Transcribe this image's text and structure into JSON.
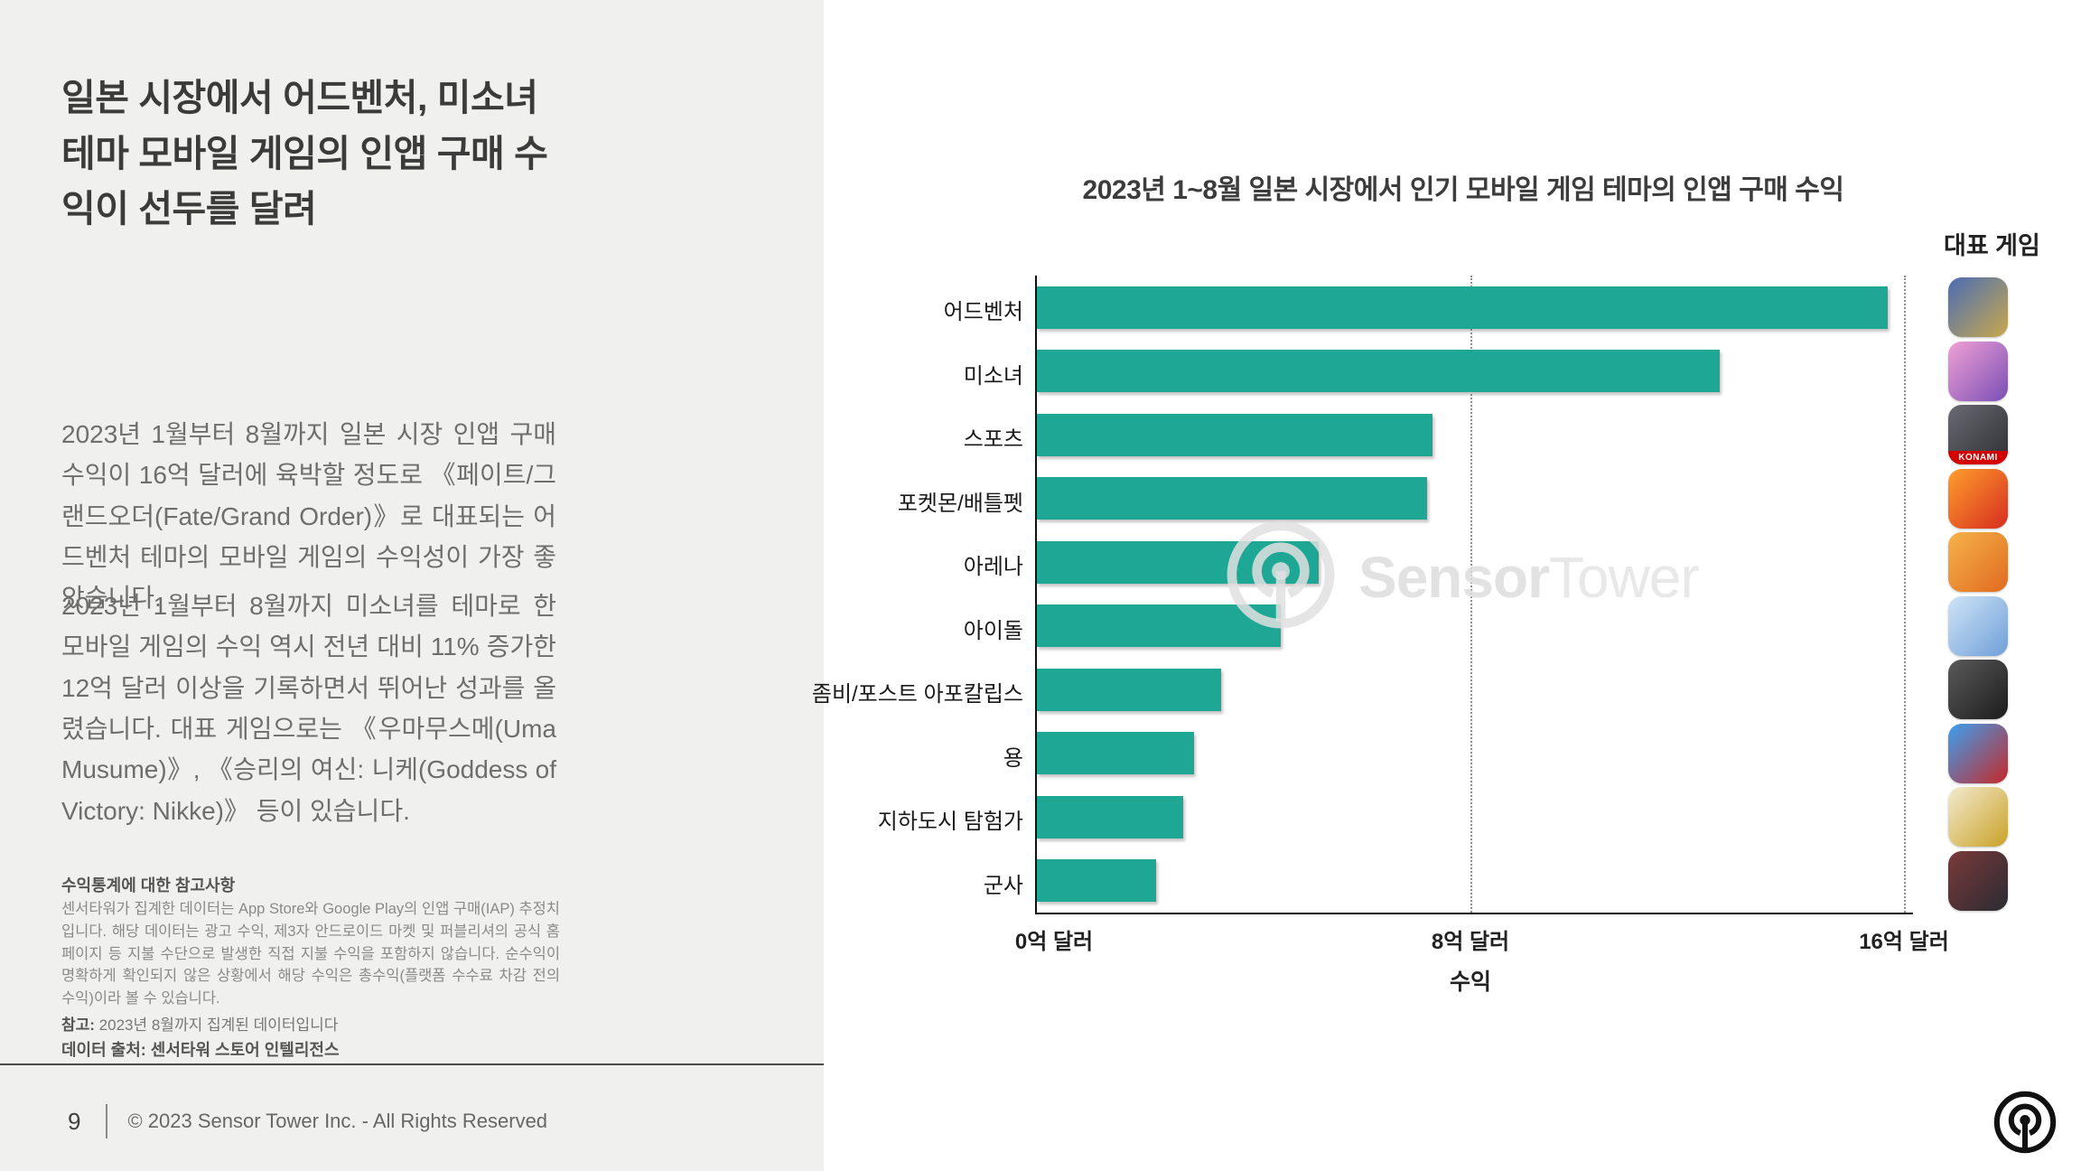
{
  "left_panel": {
    "title": "일본 시장에서 어드벤처, 미소녀 테마 모바일 게임의 인앱 구매 수익이 선두를 달려",
    "paragraph1": "2023년 1월부터 8월까지 일본 시장 인앱 구매 수익이 16억 달러에 육박할 정도로 《페이트/그랜드오더(Fate/Grand Order)》로 대표되는 어드벤처 테마의 모바일 게임의 수익성이 가장 좋았습니다.",
    "paragraph2": "2023년 1월부터 8월까지 미소녀를 테마로 한 모바일 게임의 수익 역시 전년 대비 11% 증가한 12억 달러 이상을 기록하면서 뛰어난 성과를 올렸습니다. 대표 게임으로는 《우마무스메(Uma Musume)》, 《승리의 여신: 니케(Goddess of Victory: Nikke)》 등이 있습니다.",
    "notes_heading": "수익통계에 대한 참고사항",
    "notes_body": "센서타워가 집계한 데이터는 App Store와 Google Play의 인앱 구매(IAP) 추정치입니다. 해당 데이터는 광고 수익, 제3자 안드로이드 마켓 및 퍼블리셔의 공식 홈페이지 등 지불 수단으로 발생한 직접 지불 수익을 포함하지 않습니다. 순수익이 명확하게 확인되지 않은 상황에서 해당 수익은 총수익(플랫폼 수수료 차감 전의 수익)이라 볼 수 있습니다.",
    "remark_label": "참고:",
    "remark_text": " 2023년 8월까지 집계된 데이터입니다",
    "source_line": "데이터 출처: 센서타워 스토어 인텔리전스",
    "footer": {
      "page_number": "9",
      "copyright": "© 2023 Sensor Tower Inc. - All Rights Reserved"
    }
  },
  "watermark": {
    "bold": "Sensor",
    "light": "Tower"
  },
  "chart_data": {
    "type": "bar",
    "orientation": "horizontal",
    "title": "2023년 1~8월 일본 시장에서 인기 모바일 게임 테마의 인앱 구매 수익",
    "legend_label": "대표 게임",
    "categories": [
      "어드벤처",
      "미소녀",
      "스포츠",
      "포켓몬/배틀펫",
      "아레나",
      "아이돌",
      "좀비/포스트 아포칼립스",
      "용",
      "지하도시 탐험가",
      "군사"
    ],
    "values": [
      15.7,
      12.6,
      7.3,
      7.2,
      5.2,
      4.5,
      3.4,
      2.9,
      2.7,
      2.2
    ],
    "unit": "억 달러",
    "xlabel": "수익",
    "xlim": [
      0,
      16
    ],
    "xtick_values": [
      0,
      8,
      16
    ],
    "xtick_labels": [
      "0억 달러",
      "8억 달러",
      "16억 달러"
    ],
    "grid": "dotted vertical at 8 and 16",
    "legend_position": "top-right icon column",
    "bar_color": "#1fa796",
    "icons": [
      {
        "name": "fate-grand-order-app-icon",
        "c1": "#4a6db5",
        "c2": "#c9a84c"
      },
      {
        "name": "uma-musume-app-icon",
        "c1": "#f0a0d5",
        "c2": "#7a4fb5"
      },
      {
        "name": "baseball-konami-app-icon",
        "c1": "#6a6a72",
        "c2": "#2e2e34",
        "badge": "KONAMI",
        "badge_color": "#d40000"
      },
      {
        "name": "monster-strike-app-icon",
        "c1": "#ff9e2c",
        "c2": "#d62d20"
      },
      {
        "name": "one-piece-treasure-cruise-app-icon",
        "c1": "#f6b34a",
        "c2": "#e06a1f"
      },
      {
        "name": "idol-game-app-icon",
        "c1": "#cfe4f7",
        "c2": "#6f9fd8"
      },
      {
        "name": "resident-evil-collab-app-icon",
        "c1": "#5a5a5a",
        "c2": "#1c1c1c"
      },
      {
        "name": "puzzle-and-dragons-app-icon",
        "c1": "#3aa0f0",
        "c2": "#c62828"
      },
      {
        "name": "gold-luffy-app-icon",
        "c1": "#f3ead0",
        "c2": "#c9a227"
      },
      {
        "name": "military-fate-collab-app-icon",
        "c1": "#7a3a3a",
        "c2": "#2b2b33"
      }
    ]
  }
}
